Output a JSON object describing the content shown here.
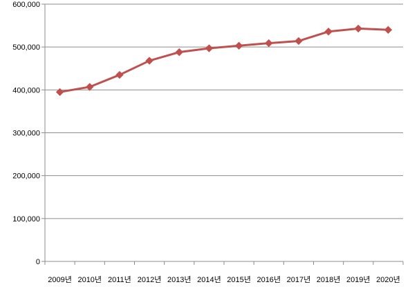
{
  "chart_data": {
    "type": "line",
    "categories": [
      "2009년",
      "2010년",
      "2011년",
      "2012년",
      "2013년",
      "2014년",
      "2015년",
      "2016년",
      "2017년",
      "2018년",
      "2019년",
      "2020년"
    ],
    "series": [
      {
        "values": [
          395000,
          407000,
          435000,
          468000,
          488000,
          497000,
          503000,
          509000,
          514000,
          536000,
          543000,
          540000
        ]
      }
    ],
    "yticks": [
      "0",
      "100,000",
      "200,000",
      "300,000",
      "400,000",
      "500,000",
      "600,000"
    ],
    "ylim": [
      0,
      600000
    ],
    "grid": true,
    "legend": "none",
    "series_color": "#c0504d",
    "grid_color": "#8c8c8c"
  }
}
